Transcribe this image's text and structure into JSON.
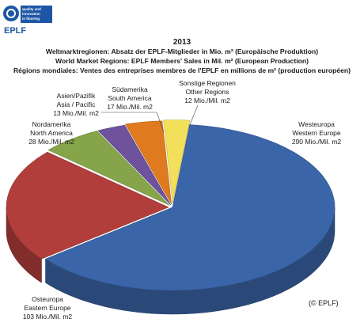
{
  "logo": {
    "name": "EPLF",
    "tagline": [
      "quality and",
      "innovation",
      "in flooring"
    ]
  },
  "chart_data": {
    "type": "pie",
    "title": "2013",
    "subtitles": [
      "Weltmarktregionen: Absatz der EPLF-Mitglieder in Mio. m² (Europäische Produktion)",
      "World Market Regions: EPLF Members' Sales in Mil. m² (European Production)",
      "Régions mondiales: Ventes des entreprises membres de l'EPLF en millions de m² (production européen)"
    ],
    "unit": "Mio./Mil. m2",
    "slices": [
      {
        "label_lines": [
          "Westeuropa",
          "Western Europe",
          "290 Mio./Mil. m2"
        ],
        "value": 290,
        "color": "#3a65a8"
      },
      {
        "label_lines": [
          "Osteuropa",
          "Eastern Europe",
          "103 Mio./Mil. m2"
        ],
        "value": 103,
        "color": "#b23e3c"
      },
      {
        "label_lines": [
          "Nordamerika",
          "North America",
          "28 Mio./Mil. m2"
        ],
        "value": 28,
        "color": "#86a54a"
      },
      {
        "label_lines": [
          "Asien/Pazifik",
          "Asia / Pacific",
          "13 Mio./Mil. m2"
        ],
        "value": 13,
        "color": "#6e529b"
      },
      {
        "label_lines": [
          "Südamerika",
          "South America",
          "17 Mio./Mil. m2"
        ],
        "value": 17,
        "color": "#e07a1f"
      },
      {
        "label_lines": [
          "Sonstige Regionen",
          "Other Regions",
          "12 Mio./Mil. m2"
        ],
        "value": 12,
        "color": "#f2e05a"
      }
    ],
    "copyright": "(© EPLF)"
  }
}
